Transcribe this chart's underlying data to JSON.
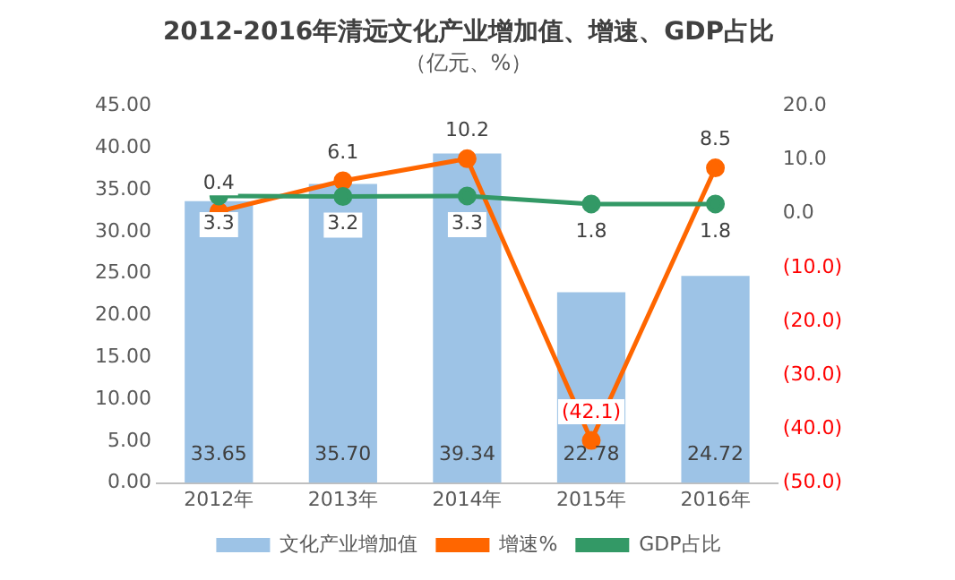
{
  "chart_data": {
    "type": "bar",
    "title": "2012-2016年清远文化产业增加值、增速、GDP占比",
    "subtitle": "（亿元、%）",
    "categories": [
      "2012年",
      "2013年",
      "2014年",
      "2015年",
      "2016年"
    ],
    "series": [
      {
        "name": "文化产业增加值",
        "color": "#9dc3e6",
        "values": [
          33.65,
          35.7,
          39.34,
          22.78,
          24.72
        ],
        "value_labels": [
          "33.65",
          "35.70",
          "39.34",
          "22.78",
          "24.72"
        ]
      },
      {
        "name": "增速%",
        "type": "line",
        "axis": "y2",
        "color": "#ff6600",
        "values": [
          0.4,
          6.1,
          10.2,
          -42.1,
          8.5
        ],
        "value_labels": [
          "0.4",
          "6.1",
          "10.2",
          "(42.1)",
          "8.5"
        ]
      },
      {
        "name": "GDP占比",
        "type": "line",
        "axis": "y2",
        "color": "#339966",
        "values": [
          3.3,
          3.2,
          3.3,
          1.8,
          1.8
        ],
        "value_labels": [
          "3.3",
          "3.2",
          "3.3",
          "1.8",
          "1.8"
        ]
      }
    ],
    "ylim": [
      0,
      45
    ],
    "yticks": [
      {
        "value": 0,
        "label": "0.00"
      },
      {
        "value": 5,
        "label": "5.00"
      },
      {
        "value": 10,
        "label": "10.00"
      },
      {
        "value": 15,
        "label": "15.00"
      },
      {
        "value": 20,
        "label": "20.00"
      },
      {
        "value": 25,
        "label": "25.00"
      },
      {
        "value": 30,
        "label": "30.00"
      },
      {
        "value": 35,
        "label": "35.00"
      },
      {
        "value": 40,
        "label": "40.00"
      },
      {
        "value": 45,
        "label": "45.00"
      }
    ],
    "y2lim": [
      -50,
      20
    ],
    "y2ticks": [
      {
        "value": -50,
        "label": "(50.0)"
      },
      {
        "value": -40,
        "label": "(40.0)"
      },
      {
        "value": -30,
        "label": "(30.0)"
      },
      {
        "value": -20,
        "label": "(20.0)"
      },
      {
        "value": -10,
        "label": "(10.0)"
      },
      {
        "value": 0,
        "label": "0.0"
      },
      {
        "value": 10,
        "label": "10.0"
      },
      {
        "value": 20,
        "label": "20.0"
      }
    ],
    "grid": false,
    "legend": "bottom",
    "marker": "circle"
  }
}
